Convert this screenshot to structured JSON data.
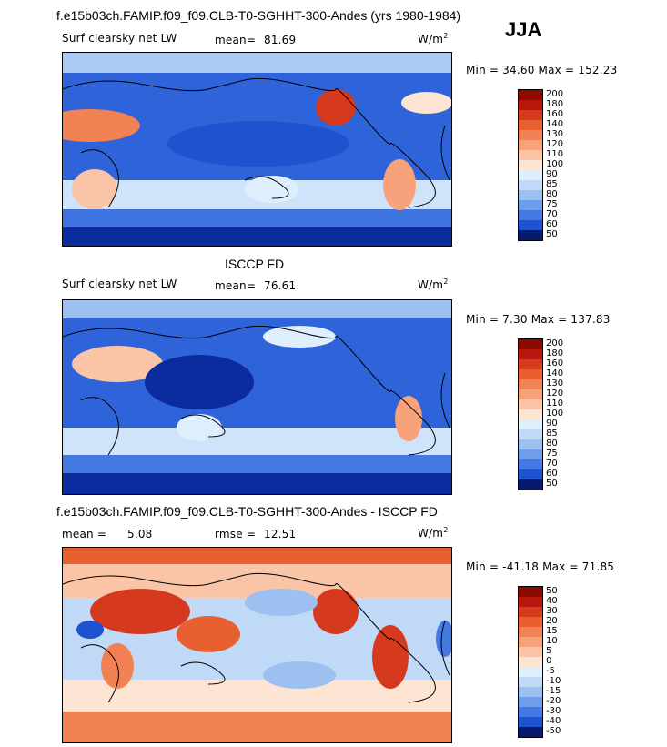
{
  "header": {
    "title": "f.e15b03ch.FAMIP.f09_f09.CLB-T0-SGHHT-300-Andes (yrs 1980-1984)",
    "season": "JJA"
  },
  "panels": [
    {
      "id": "model",
      "variable": "Surf clearsky net LW",
      "mean_label": "mean=",
      "mean_value": "81.69",
      "units_base": "W/m",
      "units_exp": "2",
      "minmax": "Min =  34.60 Max = 152.23",
      "levels": [
        "200",
        "180",
        "160",
        "140",
        "130",
        "120",
        "110",
        "100",
        "90",
        "85",
        "80",
        "75",
        "70",
        "60",
        "50"
      ]
    },
    {
      "id": "obs",
      "title": "ISCCP FD",
      "variable": "Surf clearsky net LW",
      "mean_label": "mean=",
      "mean_value": "76.61",
      "units_base": "W/m",
      "units_exp": "2",
      "minmax": "Min =   7.30 Max = 137.83",
      "levels": [
        "200",
        "180",
        "160",
        "140",
        "130",
        "120",
        "110",
        "100",
        "90",
        "85",
        "80",
        "75",
        "70",
        "60",
        "50"
      ]
    },
    {
      "id": "diff",
      "title": "f.e15b03ch.FAMIP.f09_f09.CLB-T0-SGHHT-300-Andes - ISCCP FD",
      "mean_label": "mean =",
      "mean_value": "5.08",
      "rmse_label": "rmse =",
      "rmse_value": "12.51",
      "units_base": "W/m",
      "units_exp": "2",
      "minmax": "Min = -41.18 Max =  71.85",
      "levels": [
        "50",
        "40",
        "30",
        "20",
        "15",
        "10",
        "5",
        "0",
        "-5",
        "-10",
        "-15",
        "-20",
        "-30",
        "-40",
        "-50"
      ]
    }
  ],
  "colors": {
    "scale": [
      "#8c0a00",
      "#b8150c",
      "#d63a1e",
      "#e8602f",
      "#f28253",
      "#f7a27a",
      "#fac4a6",
      "#fde4d3",
      "#dfeefc",
      "#bfd9f7",
      "#9cc0f0",
      "#6e9eea",
      "#4579e2",
      "#1f52cf",
      "#0a2c9e",
      "#061a6e"
    ]
  }
}
